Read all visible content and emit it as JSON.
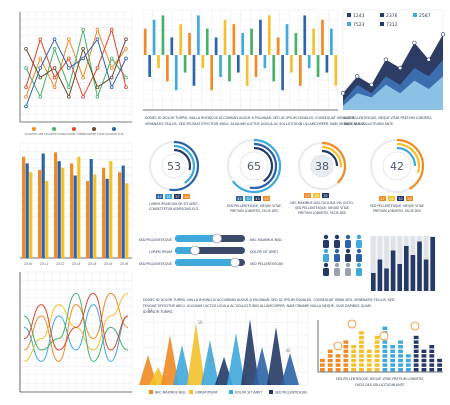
{
  "colors": {
    "orange": "#f08a24",
    "yellow": "#f4c12b",
    "blue": "#2d64a8",
    "cyan": "#3fa9dc",
    "green": "#47b06a",
    "navy": "#253a66",
    "red": "#e0462c",
    "grey": "#9aa3ad"
  },
  "line_chart_legend": [
    "QUARTER ONE",
    "QUARTER TWO",
    "QUARTER THREE",
    "QUARTER FOUR",
    "QUARTER FIVE"
  ],
  "text_a": [
    "DONEC ID DOLOR TURPIS. NULLA RHONCUS ACCUMSAN AUGUE A PULVINAR. SED AC IPSUM SODALES, CONSEQUAT URNA SED,",
    "VENENATIS TELLUS. SED FEUGIAT EFFICITUR ARCU. ALIQUAM LUCTUS LIGULA AC SOLLICITUDIN ULLAMCORPER. NAM ORNARE NULLA"
  ],
  "area_stats": {
    "values": [
      "1243",
      "2376",
      "2587",
      "7523",
      "7312"
    ]
  },
  "text_b": [
    "SED PELLENTESQUE, NEQUE VITAE PRETIUM LOBORTIS,",
    "FACIS DES SOLLICITUDIN ANTE"
  ],
  "donuts": [
    {
      "value": "53",
      "mini": [
        "43",
        "22",
        "27",
        "48"
      ],
      "text": [
        "LOREM IPSUM DOLOR SIT AMET,",
        "CONSECTETUR ADIPISCING ELIT."
      ]
    },
    {
      "value": "65",
      "mini": [
        "42",
        "32",
        "43",
        "25"
      ],
      "text": [
        "SED PELLENTESQUE, NEQUE VITAE",
        "PRETIUM LOBORTIS, FACIS DES"
      ]
    },
    {
      "value": "38",
      "mini": [
        "23",
        "28",
        "32"
      ],
      "text": [
        "NEC MAXIMUS NISL FACILISIS VEL JUSTO.",
        "SED PELLENTESQUE, NEQUE VITAE",
        "PRETIUM LOBORTIS, FACIS DES"
      ]
    },
    {
      "value": "42",
      "mini": [
        "27",
        "46",
        "32",
        "26"
      ],
      "text": [
        "SED PELLENTESQUE, NEQUE VITAE",
        "PRETIUM LOBORTIS, FACIS DES"
      ]
    }
  ],
  "sliders": {
    "left": [
      "SED PELLENTESQUE",
      "LOREM IPSUM",
      "SED PELLENTESQUE"
    ],
    "right": [
      "NEC MAXIMUS NISL",
      "DOLOR SIT AMET",
      "SED PELLENTESQUE"
    ]
  },
  "text_c": [
    "DONEC ID DOLOR TURPIS. NULLA RHONCUS ACCUMSAN AUGUE A PULVINAR. SED AC IPSUM SODALES, CONSEQUAT URNA SED, VENENATIS TELLUS. SED",
    "FEUGIAT EFFICITUR ARCU. ALIQUAM LUCTUS LIGULA AC SOLLICITUDIN ULLAMCORPER. NAM ORNARE NULLA NEQUE, QUIS DAPIBUS QUAM.",
    "ID DOLOR TURPIS."
  ],
  "triangle_legend": [
    "NEC MAXIMUS NISL",
    "LOREM IPSUM",
    "DOLOR SIT AMET",
    "SED PELLENTESQUE"
  ],
  "triangle_labels": [
    "53",
    "56",
    "40",
    "22"
  ],
  "steps_text": [
    "SED PELLENTESQUE, NEQUE VITAE PRETIUM LOBORTIS,",
    "FACIS DES SOLLICITUDIN ANTE"
  ],
  "chart_data": [
    {
      "type": "line",
      "title": "",
      "series": [
        {
          "name": "QUARTER ONE",
          "values": [
            2,
            6,
            3,
            8,
            4,
            9,
            5,
            7
          ]
        },
        {
          "name": "QUARTER TWO",
          "values": [
            5,
            2,
            7,
            3,
            9,
            2,
            6,
            4
          ]
        },
        {
          "name": "QUARTER THREE",
          "values": [
            3,
            8,
            4,
            6,
            2,
            5,
            9,
            3
          ]
        },
        {
          "name": "QUARTER FOUR",
          "values": [
            7,
            4,
            5,
            2,
            7,
            3,
            4,
            8
          ]
        },
        {
          "name": "QUARTER FIVE",
          "values": [
            1,
            5,
            8,
            5,
            6,
            8,
            3,
            6
          ]
        }
      ]
    },
    {
      "type": "bar",
      "title": "",
      "values": [
        6,
        -5,
        8,
        -3,
        9,
        -6,
        4,
        -8,
        7,
        -4,
        5,
        -7,
        9,
        -3,
        6,
        -8,
        4,
        -5,
        8,
        -6,
        7,
        -4,
        5,
        -7,
        6,
        -5,
        8,
        -3,
        9,
        -6,
        4,
        -8,
        7,
        -4,
        5,
        -7,
        9,
        -3,
        6,
        -5,
        8,
        -4,
        6,
        -7
      ]
    },
    {
      "type": "area",
      "series": [
        {
          "values": [
            2,
            4,
            3,
            6,
            5,
            8,
            6,
            9
          ]
        },
        {
          "values": [
            1,
            3,
            2,
            4,
            3,
            5,
            4,
            6
          ]
        },
        {
          "values": [
            0.5,
            2,
            1.5,
            3,
            2,
            3.5,
            2.5,
            4
          ]
        }
      ]
    },
    {
      "type": "bar",
      "categories": [
        "2010",
        "2011",
        "2012",
        "2013",
        "2014",
        "2015",
        "2016"
      ],
      "series": [
        {
          "name": "",
          "values": [
            92,
            80,
            96,
            86,
            70,
            82,
            78
          ]
        },
        {
          "name": "",
          "values": [
            86,
            95,
            88,
            75,
            90,
            72,
            84
          ]
        },
        {
          "name": "",
          "values": [
            78,
            70,
            82,
            92,
            76,
            88,
            68
          ]
        }
      ]
    },
    {
      "type": "pie",
      "values": [
        53,
        65,
        38,
        42
      ]
    },
    {
      "type": "bar",
      "values": [
        4,
        7,
        5,
        9,
        6,
        10,
        8,
        11,
        7,
        12
      ]
    },
    {
      "type": "line",
      "series": [
        {
          "values": [
            3,
            6,
            2,
            7,
            4,
            8,
            5
          ]
        },
        {
          "values": [
            5,
            2,
            6,
            3,
            7,
            2,
            6
          ]
        },
        {
          "values": [
            2,
            4,
            7,
            5,
            3,
            6,
            8
          ]
        },
        {
          "values": [
            6,
            3,
            4,
            8,
            2,
            5,
            3
          ]
        },
        {
          "values": [
            4,
            7,
            3,
            5,
            8,
            3,
            6
          ]
        }
      ]
    },
    {
      "type": "bar",
      "values": [
        22,
        40,
        31,
        56,
        28,
        53,
        35,
        45,
        26,
        38
      ]
    },
    {
      "type": "bar",
      "values": [
        3,
        5,
        4,
        7,
        6,
        9,
        5,
        8,
        10,
        6,
        7,
        4,
        8,
        5,
        6,
        3
      ]
    }
  ]
}
